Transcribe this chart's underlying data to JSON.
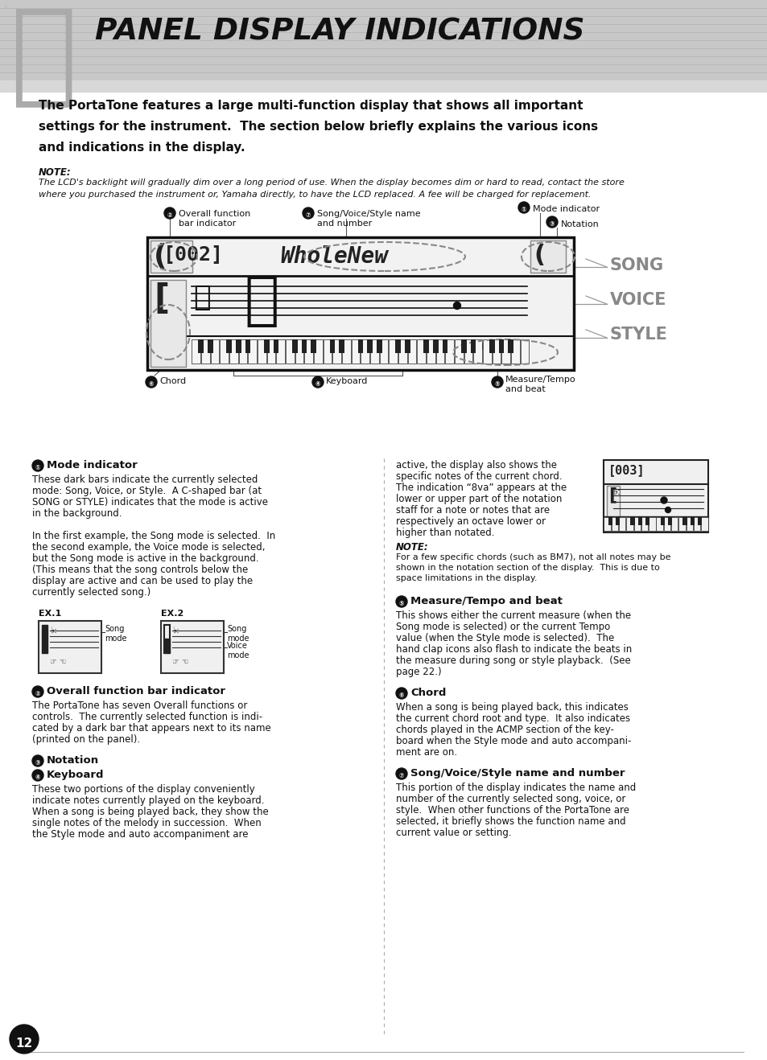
{
  "title": "PANEL DISPLAY INDICATIONS",
  "bg_header": "#c8c8c8",
  "bg_white": "#ffffff",
  "bold_intro_lines": [
    "The PortaTone features a large multi-function display that shows all important",
    "settings for the instrument.  The section below briefly explains the various icons",
    "and indications in the display."
  ],
  "note_label": "NOTE:",
  "note_text_lines": [
    "The LCD's backlight will gradually dim over a long period of use. When the display becomes dim or hard to read, contact the store",
    "where you purchased the instrument or, Yamaha directly, to have the LCD replaced. A fee will be charged for replacement."
  ],
  "diag_label2_line1": "Overall function",
  "diag_label2_line2": "bar indicator",
  "diag_label7_line1": "Song/Voice/Style name",
  "diag_label7_line2": "and number",
  "diag_label1": "Mode indicator",
  "diag_label3": "Notation",
  "diag_label6": "Chord",
  "diag_label4": "Keyboard",
  "diag_label5_line1": "Measure/Tempo",
  "diag_label5_line2": "and beat",
  "song_label": "SONG",
  "voice_label": "VOICE",
  "style_label": "STYLE",
  "sec1_title": "Mode indicator",
  "sec1_body": [
    "These dark bars indicate the currently selected",
    "mode: Song, Voice, or Style.  A C-shaped bar (at",
    "SONG or STYLE) indicates that the mode is active",
    "in the background.",
    "",
    "In the first example, the Song mode is selected.  In",
    "the second example, the Voice mode is selected,",
    "but the Song mode is active in the background.",
    "(This means that the song controls below the",
    "display are active and can be used to play the",
    "currently selected song.)"
  ],
  "ex1_label": "EX.1",
  "ex2_label": "EX.2",
  "ex1_tag": "Song\nmode",
  "ex2_tag1": "Song\nmode",
  "ex2_tag2": "Voice\nmode",
  "sec2_title": "Overall function bar indicator",
  "sec2_body": [
    "The PortaTone has seven Overall functions or",
    "controls.  The currently selected function is indi-",
    "cated by a dark bar that appears next to its name",
    "(printed on the panel)."
  ],
  "sec3_title": "Notation",
  "sec4_title": "Keyboard",
  "sec34_body": [
    "These two portions of the display conveniently",
    "indicate notes currently played on the keyboard.",
    "When a song is being played back, they show the",
    "single notes of the melody in succession.  When",
    "the Style mode and auto accompaniment are"
  ],
  "right_cont": [
    "active, the display also shows the",
    "specific notes of the current chord.",
    "The indication “8va” appears at the",
    "lower or upper part of the notation",
    "staff for a note or notes that are",
    "respectively an octave lower or",
    "higher than notated."
  ],
  "note2_label": "NOTE:",
  "note2_body": [
    "For a few specific chords (such as BM7), not all notes may be",
    "shown in the notation section of the display.  This is due to",
    "space limitations in the display."
  ],
  "sec5_title": "Measure/Tempo and beat",
  "sec5_body": [
    "This shows either the current measure (when the",
    "Song mode is selected) or the current Tempo",
    "value (when the Style mode is selected).  The",
    "hand clap icons also flash to indicate the beats in",
    "the measure during song or style playback.  (See",
    "page 22.)"
  ],
  "sec6_title": "Chord",
  "sec6_body": [
    "When a song is being played back, this indicates",
    "the current chord root and type.  It also indicates",
    "chords played in the ACMP section of the key-",
    "board when the Style mode and auto accompani-",
    "ment are on."
  ],
  "sec7_title": "Song/Voice/Style name and number",
  "sec7_body": [
    "This portion of the display indicates the name and",
    "number of the currently selected song, voice, or",
    "style.  When other functions of the PortaTone are",
    "selected, it briefly shows the function name and",
    "current value or setting."
  ],
  "page_number": "12"
}
